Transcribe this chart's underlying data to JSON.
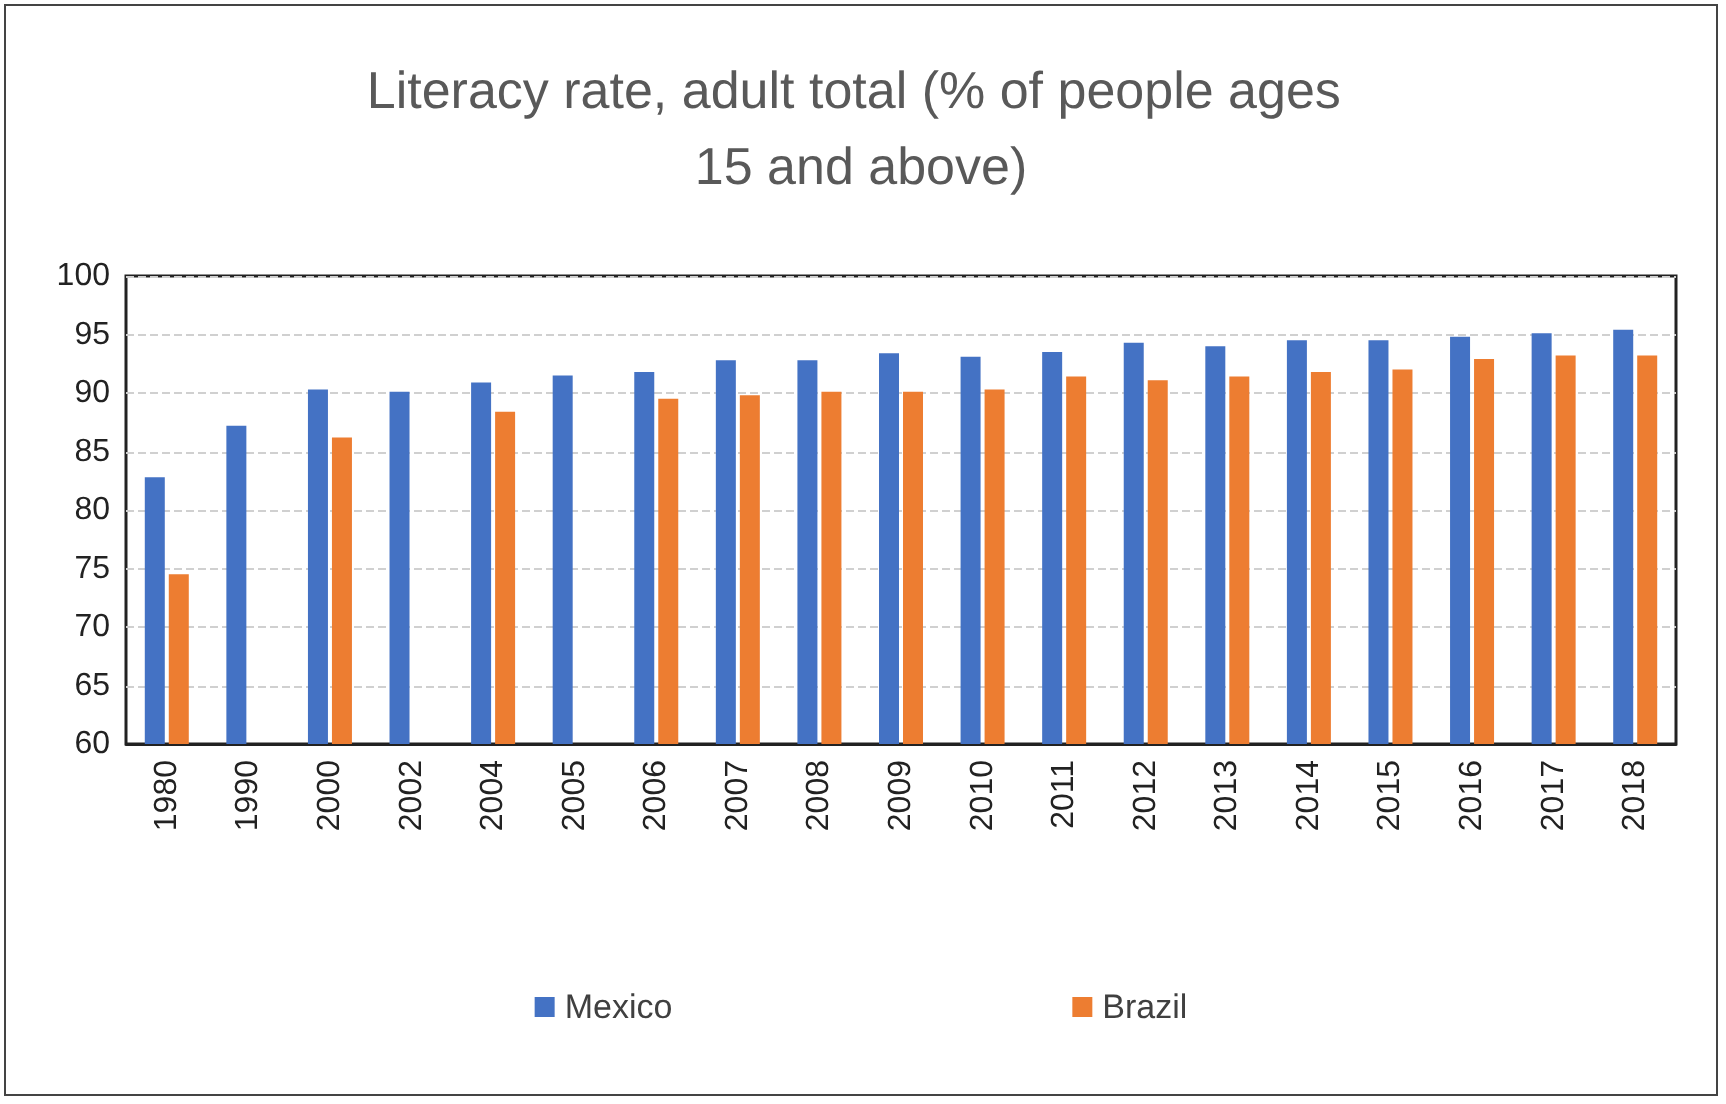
{
  "chart_data": {
    "type": "bar",
    "title": "Literacy rate, adult total (% of people ages 15 and above)",
    "categories": [
      "1980",
      "1990",
      "2000",
      "2002",
      "2004",
      "2005",
      "2006",
      "2007",
      "2008",
      "2009",
      "2010",
      "2011",
      "2012",
      "2013",
      "2014",
      "2015",
      "2016",
      "2017",
      "2018"
    ],
    "series": [
      {
        "name": "Mexico",
        "color": "#4472c4",
        "values": [
          82.8,
          87.2,
          90.3,
          90.1,
          90.9,
          91.5,
          91.8,
          92.8,
          92.8,
          93.4,
          93.1,
          93.5,
          94.3,
          94.0,
          94.5,
          94.5,
          94.8,
          95.1,
          95.4
        ]
      },
      {
        "name": "Brazil",
        "color": "#ed7d31",
        "values": [
          74.5,
          null,
          86.2,
          null,
          88.4,
          null,
          89.5,
          89.8,
          90.1,
          90.1,
          90.3,
          91.4,
          91.1,
          91.4,
          91.8,
          92.0,
          92.9,
          93.2,
          93.2
        ]
      }
    ],
    "ylim": [
      60,
      100
    ],
    "yticks": [
      60,
      65,
      70,
      75,
      80,
      85,
      90,
      95,
      100
    ],
    "grid": "y",
    "legend": "bottom"
  }
}
